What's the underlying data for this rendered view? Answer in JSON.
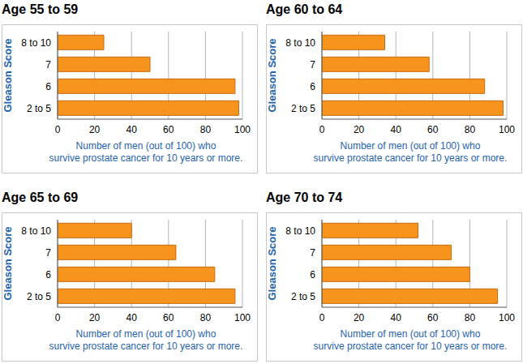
{
  "chart_data": [
    {
      "type": "bar",
      "title": "Age 55 to 59",
      "orientation": "horizontal",
      "grid": true,
      "categories": [
        "8 to 10",
        "7",
        "6",
        "2 to 5"
      ],
      "values": [
        25,
        50,
        96,
        98
      ],
      "color": "#f7941d",
      "xlim": [
        0,
        100
      ],
      "xticks": [
        0,
        20,
        40,
        60,
        80,
        100
      ],
      "ylabel": "Gleason Score",
      "xlabel": "Number of men (out of 100) who\nsurvive prostate cancer for 10 years or more."
    },
    {
      "type": "bar",
      "title": "Age 60 to 64",
      "orientation": "horizontal",
      "grid": true,
      "categories": [
        "8 to 10",
        "7",
        "6",
        "2 to 5"
      ],
      "values": [
        34,
        58,
        88,
        98
      ],
      "color": "#f7941d",
      "xlim": [
        0,
        100
      ],
      "xticks": [
        0,
        20,
        40,
        60,
        80,
        100
      ],
      "ylabel": "Gleason Score",
      "xlabel": "Number of men (out of 100) who\nsurvive prostate cancer for 10 years or more."
    },
    {
      "type": "bar",
      "title": "Age 65 to 69",
      "orientation": "horizontal",
      "grid": true,
      "categories": [
        "8 to 10",
        "7",
        "6",
        "2 to 5"
      ],
      "values": [
        40,
        64,
        85,
        96
      ],
      "color": "#f7941d",
      "xlim": [
        0,
        100
      ],
      "xticks": [
        0,
        20,
        40,
        60,
        80,
        100
      ],
      "ylabel": "Gleason Score",
      "xlabel": "Number of men (out of 100) who\nsurvive prostate cancer for 10 years or more."
    },
    {
      "type": "bar",
      "title": "Age 70 to 74",
      "orientation": "horizontal",
      "grid": true,
      "categories": [
        "8 to 10",
        "7",
        "6",
        "2 to 5"
      ],
      "values": [
        52,
        70,
        80,
        95
      ],
      "color": "#f7941d",
      "xlim": [
        0,
        100
      ],
      "xticks": [
        0,
        20,
        40,
        60,
        80,
        100
      ],
      "ylabel": "Gleason Score",
      "xlabel": "Number of men (out of 100) who\nsurvive prostate cancer for 10 years or more."
    }
  ]
}
